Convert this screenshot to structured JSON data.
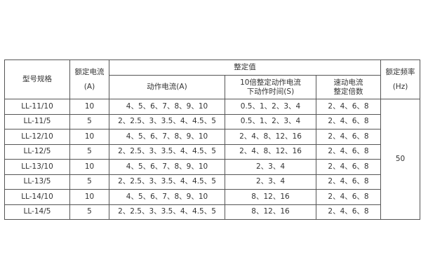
{
  "headers": {
    "model": "型号规格",
    "rated_current": "额定电流",
    "rated_current_unit": "(A)",
    "setting_value": "整定值",
    "action_current": "动作电流(A)",
    "action_time_line1": "10倍整定动作电流",
    "action_time_line2": "下动作时间(S)",
    "quick_line1": "速动电流",
    "quick_line2": "整定倍数",
    "rated_freq": "额定频率",
    "rated_freq_unit": "(Hz)"
  },
  "rows": [
    {
      "model": "LL-11/10",
      "current": "10",
      "action": "4、5、6、7、8、9、10",
      "time": "0.5、1、2、3、4",
      "quick": "2、4、6、8"
    },
    {
      "model": "LL-11/5",
      "current": "5",
      "action": "2、2.5、3、3.5、4、4.5、5",
      "time": "0.5、1、2、3、4",
      "quick": "2、4、6、8"
    },
    {
      "model": "LL-12/10",
      "current": "10",
      "action": "4、5、6、7、8、9、10",
      "time": "2、4、8、12、16",
      "quick": "2、4、6、8"
    },
    {
      "model": "LL-12/5",
      "current": "5",
      "action": "2、2.5、3、3.5、4、4.5、5",
      "time": "2、4、8、12、16",
      "quick": "2、4、6、8"
    },
    {
      "model": "LL-13/10",
      "current": "10",
      "action": "4、5、6、7、8、9、10",
      "time": "2、3、4",
      "quick": "2、4、6、8"
    },
    {
      "model": "LL-13/5",
      "current": "5",
      "action": "2、2.5、3、3.5、4、4.5、5",
      "time": "2、3、4",
      "quick": "2、4、6、8"
    },
    {
      "model": "LL-14/10",
      "current": "10",
      "action": "4、5、6、7、8、9、10",
      "time": "8、12、16",
      "quick": "2、4、6、8"
    },
    {
      "model": "LL-14/5",
      "current": "5",
      "action": "2、2.5、3、3.5、4、4.5、5",
      "time": "8、12、16",
      "quick": "2、4、6、8"
    }
  ],
  "frequency": "50"
}
